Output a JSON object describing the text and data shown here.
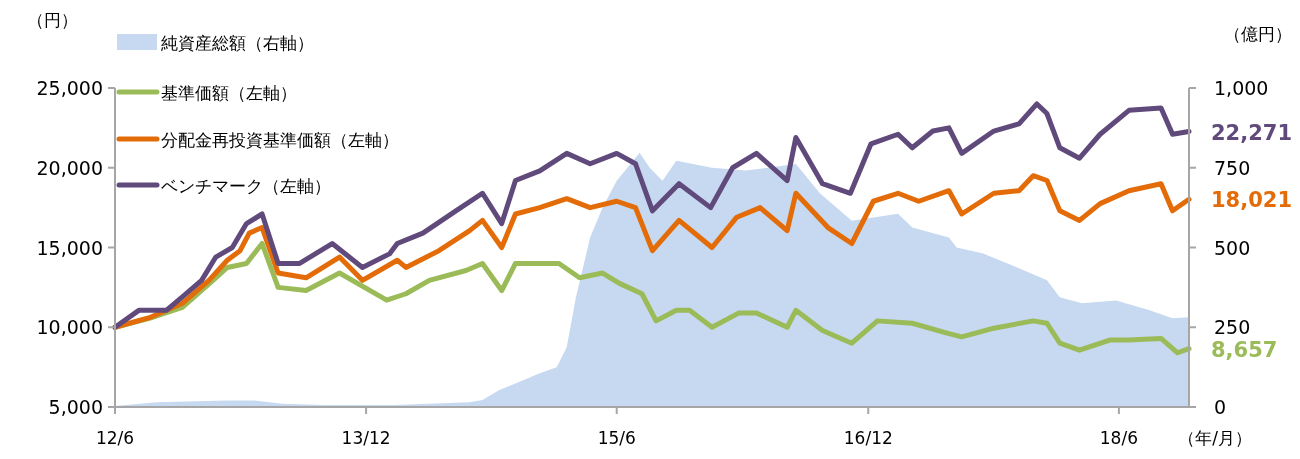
{
  "chart_data": {
    "type": "line",
    "ylabel": "（円）",
    "y2label": "（億円）",
    "xlabel": "（年/月）",
    "legend": "top left",
    "xlim": [
      "2012-06",
      "2018-11"
    ],
    "xticks": [
      {
        "value": "2012-06",
        "label": "12/6"
      },
      {
        "value": "2013-12",
        "label": "13/12"
      },
      {
        "value": "2015-06",
        "label": "15/6"
      },
      {
        "value": "2016-12",
        "label": "16/12"
      },
      {
        "value": "2018-06",
        "label": "18/6"
      }
    ],
    "ylim": [
      5000,
      25000
    ],
    "yticks": [
      {
        "value": 5000,
        "label": "5,000"
      },
      {
        "value": 10000,
        "label": "10,000"
      },
      {
        "value": 15000,
        "label": "15,000"
      },
      {
        "value": 20000,
        "label": "20,000"
      },
      {
        "value": 25000,
        "label": "25,000"
      }
    ],
    "y2lim": [
      0,
      1000
    ],
    "y2ticks": [
      0,
      250,
      500,
      750,
      {
        "value": 1000,
        "label": "1,000"
      }
    ],
    "series": [
      {
        "name": "純資産総額（右軸）",
        "type": "area",
        "axis": "y2",
        "color": "#c6d9f0",
        "x": [
          "2012-06-01",
          "2012-09-01",
          "2013-02-01",
          "2013-04-01",
          "2013-06-01",
          "2013-09-01",
          "2014-02-01",
          "2014-07-15",
          "2014-08-12",
          "2014-09-18",
          "2014-11-09",
          "2014-12-15",
          "2015-01-21",
          "2015-02-12",
          "2015-03-04",
          "2015-04-04",
          "2015-05-01",
          "2015-06-01",
          "2015-07-21",
          "2015-08-12",
          "2015-09-09",
          "2015-10-09",
          "2015-12-26",
          "2016-03-09",
          "2016-06-26",
          "2016-08-18",
          "2016-10-26",
          "2017-02-04",
          "2017-03-07",
          "2017-05-26",
          "2017-06-12",
          "2017-08-09",
          "2017-10-21",
          "2017-12-26",
          "2018-01-23",
          "2018-03-12",
          "2018-05-26",
          "2018-08-07",
          "2018-09-26",
          "2018-11-01"
        ],
        "values": [
          3,
          15,
          20,
          20,
          10,
          6,
          6,
          15,
          22,
          53,
          84,
          106,
          125,
          188,
          344,
          531,
          625,
          709,
          797,
          750,
          709,
          772,
          750,
          741,
          762,
          669,
          584,
          606,
          563,
          531,
          500,
          481,
          438,
          397,
          344,
          325,
          334,
          303,
          278,
          281
        ]
      },
      {
        "name": "基準価額（左軸）",
        "color": "#9bbb59",
        "x": [
          "2012-06-01",
          "2012-08-15",
          "2012-10-26",
          "2013-01-01",
          "2013-02-01",
          "2013-03-15",
          "2013-04-18",
          "2013-05-23",
          "2013-07-23",
          "2013-10-04",
          "2014-01-15",
          "2014-02-26",
          "2014-04-18",
          "2014-07-07",
          "2014-08-12",
          "2014-09-23",
          "2014-10-23",
          "2014-12-15",
          "2015-01-26",
          "2015-03-12",
          "2015-05-01",
          "2015-06-07",
          "2015-07-26",
          "2015-08-26",
          "2015-10-09",
          "2015-11-07",
          "2015-12-26",
          "2016-02-23",
          "2016-04-01",
          "2016-06-07",
          "2016-06-26",
          "2016-08-23",
          "2016-10-26",
          "2016-12-21",
          "2017-03-07",
          "2017-05-26",
          "2017-06-23",
          "2017-09-01",
          "2017-11-26",
          "2017-12-26",
          "2018-01-23",
          "2018-03-07",
          "2018-05-12",
          "2018-06-23",
          "2018-09-01",
          "2018-10-07",
          "2018-11-01"
        ],
        "values": [
          10000,
          10560,
          11250,
          12940,
          13750,
          14000,
          15250,
          12500,
          12300,
          13400,
          11700,
          12100,
          12940,
          13560,
          14000,
          12300,
          14000,
          14000,
          14000,
          13100,
          13400,
          12750,
          12100,
          10400,
          11060,
          11060,
          10000,
          10900,
          10900,
          10000,
          11060,
          9800,
          9000,
          10400,
          10250,
          9600,
          9400,
          9940,
          10400,
          10250,
          9000,
          8560,
          9200,
          9200,
          9300,
          8400,
          8657
        ]
      },
      {
        "name": "分配金再投資基準価額（左軸）",
        "color": "#e36c09",
        "x": [
          "2012-06-01",
          "2012-08-15",
          "2012-10-26",
          "2012-12-23",
          "2013-02-01",
          "2013-03-01",
          "2013-03-21",
          "2013-04-18",
          "2013-05-23",
          "2013-07-23",
          "2013-10-04",
          "2013-11-23",
          "2014-02-07",
          "2014-02-26",
          "2014-05-09",
          "2014-07-15",
          "2014-08-12",
          "2014-09-23",
          "2014-10-23",
          "2014-12-15",
          "2015-02-12",
          "2015-04-04",
          "2015-06-01",
          "2015-07-12",
          "2015-08-18",
          "2015-10-15",
          "2015-12-26",
          "2016-02-18",
          "2016-04-09",
          "2016-06-07",
          "2016-06-26",
          "2016-09-04",
          "2016-10-26",
          "2016-12-12",
          "2017-02-04",
          "2017-03-21",
          "2017-05-26",
          "2017-06-23",
          "2017-09-01",
          "2017-10-26",
          "2017-11-26",
          "2017-12-26",
          "2018-01-23",
          "2018-03-07",
          "2018-04-21",
          "2018-06-23",
          "2018-09-01",
          "2018-09-26",
          "2018-11-01"
        ],
        "values": [
          10000,
          10600,
          11500,
          12940,
          14200,
          14800,
          15900,
          16250,
          13400,
          13100,
          14400,
          12940,
          14200,
          13750,
          14800,
          16060,
          16700,
          15000,
          17100,
          17500,
          18060,
          17500,
          17900,
          17500,
          14800,
          16700,
          15000,
          16900,
          17500,
          16060,
          18400,
          16250,
          15250,
          17900,
          18400,
          17900,
          18560,
          17100,
          18400,
          18560,
          19500,
          19200,
          17300,
          16700,
          17750,
          18560,
          19000,
          17300,
          18021
        ]
      },
      {
        "name": "ベンチマーク（左軸）",
        "color": "#604a7b",
        "x": [
          "2012-06-01",
          "2012-07-23",
          "2012-09-21",
          "2012-10-26",
          "2012-12-07",
          "2013-01-07",
          "2013-02-12",
          "2013-03-15",
          "2013-04-18",
          "2013-05-23",
          "2013-07-09",
          "2013-09-18",
          "2013-11-23",
          "2014-01-21",
          "2014-02-07",
          "2014-04-04",
          "2014-06-15",
          "2014-08-12",
          "2014-09-23",
          "2014-10-23",
          "2014-12-15",
          "2015-02-12",
          "2015-04-04",
          "2015-06-01",
          "2015-07-12",
          "2015-08-18",
          "2015-10-15",
          "2015-12-23",
          "2016-02-09",
          "2016-04-01",
          "2016-06-07",
          "2016-06-26",
          "2016-08-23",
          "2016-10-23",
          "2016-12-07",
          "2017-02-04",
          "2017-03-07",
          "2017-04-21",
          "2017-05-26",
          "2017-06-23",
          "2017-09-01",
          "2017-10-26",
          "2017-12-04",
          "2017-12-26",
          "2018-01-23",
          "2018-03-07",
          "2018-04-21",
          "2018-06-23",
          "2018-09-01",
          "2018-09-26",
          "2018-11-01"
        ],
        "values": [
          10000,
          11060,
          11060,
          11900,
          12940,
          14400,
          15000,
          16500,
          17100,
          14000,
          14000,
          15250,
          13750,
          14600,
          15250,
          15900,
          17300,
          18400,
          16500,
          19200,
          19800,
          20900,
          20250,
          20900,
          20250,
          17300,
          19000,
          17500,
          20000,
          20900,
          19200,
          21900,
          19000,
          18400,
          21500,
          22100,
          21250,
          22300,
          22500,
          20900,
          22300,
          22750,
          24000,
          23400,
          21250,
          20600,
          22100,
          23600,
          23750,
          22100,
          22271
        ]
      }
    ],
    "annotations": [
      {
        "text": "22,271",
        "x": "2018-11-01",
        "y": 22271
      },
      {
        "text": "18,021",
        "x": "2018-11-01",
        "y": 18021
      },
      {
        "text": "8,657",
        "x": "2018-11-01",
        "y": 8657
      }
    ]
  }
}
